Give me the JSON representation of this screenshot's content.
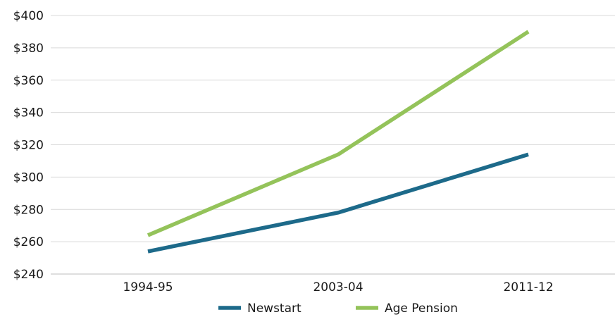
{
  "chart_data": {
    "type": "line",
    "title": "",
    "xlabel": "",
    "ylabel": "",
    "categories": [
      "1994-95",
      "2003-04",
      "2011-12"
    ],
    "ylim": [
      240,
      400
    ],
    "yticks": [
      240,
      260,
      280,
      300,
      320,
      340,
      360,
      380,
      400
    ],
    "ytick_labels": [
      "$240",
      "$260",
      "$280",
      "$300",
      "$320",
      "$340",
      "$360",
      "$380",
      "$400"
    ],
    "grid": true,
    "legend_position": "bottom",
    "series": [
      {
        "name": "Newstart",
        "color": "#1d6a8a",
        "values": [
          254,
          278,
          314
        ]
      },
      {
        "name": "Age Pension",
        "color": "#94c35a",
        "values": [
          264,
          314,
          390
        ]
      }
    ]
  }
}
